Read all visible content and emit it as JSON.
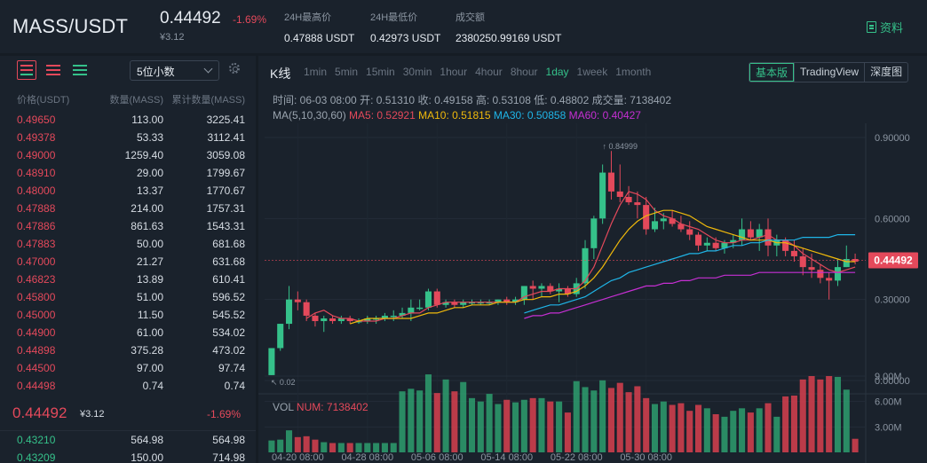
{
  "header": {
    "pair": "MASS/USDT",
    "last_price": "0.44492",
    "change_pct": "-1.69%",
    "cny_price": "¥3.12",
    "high_label": "24H最高价",
    "high_value": "0.47888 USDT",
    "low_label": "24H最低价",
    "low_value": "0.42973 USDT",
    "volume_label": "成交额",
    "volume_value": "2380250.99169 USDT",
    "info_label": "资料",
    "info_icon": "doc-icon"
  },
  "orderbook": {
    "depth_select": "5位小数",
    "columns": {
      "price": "价格(USDT)",
      "amount": "数量(MASS)",
      "total": "累计数量(MASS)"
    },
    "asks": [
      [
        "0.49650",
        "113.00",
        "3225.41"
      ],
      [
        "0.49378",
        "53.33",
        "3112.41"
      ],
      [
        "0.49000",
        "1259.40",
        "3059.08"
      ],
      [
        "0.48910",
        "29.00",
        "1799.67"
      ],
      [
        "0.48000",
        "13.37",
        "1770.67"
      ],
      [
        "0.47888",
        "214.00",
        "1757.31"
      ],
      [
        "0.47886",
        "861.63",
        "1543.31"
      ],
      [
        "0.47883",
        "50.00",
        "681.68"
      ],
      [
        "0.47000",
        "21.27",
        "631.68"
      ],
      [
        "0.46823",
        "13.89",
        "610.41"
      ],
      [
        "0.45800",
        "51.00",
        "596.52"
      ],
      [
        "0.45000",
        "11.50",
        "545.52"
      ],
      [
        "0.44900",
        "61.00",
        "534.02"
      ],
      [
        "0.44898",
        "375.28",
        "473.02"
      ],
      [
        "0.44500",
        "97.00",
        "97.74"
      ],
      [
        "0.44498",
        "0.74",
        "0.74"
      ]
    ],
    "mid": {
      "price": "0.44492",
      "cny": "¥3.12",
      "pct": "-1.69%"
    },
    "bids": [
      [
        "0.43210",
        "564.98",
        "564.98"
      ],
      [
        "0.43209",
        "150.00",
        "714.98"
      ]
    ]
  },
  "chart": {
    "title": "K线",
    "intervals": [
      "1min",
      "5min",
      "15min",
      "30min",
      "1hour",
      "4hour",
      "8hour",
      "1day",
      "1week",
      "1month"
    ],
    "active_interval": "1day",
    "views": [
      "基本版",
      "TradingView",
      "深度图"
    ],
    "active_view": "基本版",
    "info_line": [
      {
        "label": "时间:",
        "value": "06-03 08:00"
      },
      {
        "label": "开:",
        "value": "0.51310"
      },
      {
        "label": "收:",
        "value": "0.49158"
      },
      {
        "label": "高:",
        "value": "0.53108"
      },
      {
        "label": "低:",
        "value": "0.48802"
      },
      {
        "label": "成交量:",
        "value": "7138402"
      }
    ],
    "ma_line": {
      "label": "MA(5,10,30,60)",
      "items": [
        {
          "text": "MA5: 0.52921",
          "color": "#e4495b"
        },
        {
          "text": "MA10: 0.51815",
          "color": "#f0b90b"
        },
        {
          "text": "MA30: 0.50858",
          "color": "#1fb5e8"
        },
        {
          "text": "MA60: 0.40427",
          "color": "#c62fd3"
        }
      ]
    },
    "vol_label": "VOL",
    "vol_num": "NUM: 7138402",
    "current_price_tag": "0.44492",
    "max_label": "0.84999",
    "min_label": "0.02"
  },
  "chart_data": {
    "type": "candlestick",
    "x_tick_labels": [
      "04-20 08:00",
      "04-28 08:00",
      "05-06 08:00",
      "05-14 08:00",
      "05-22 08:00",
      "05-30 08:00"
    ],
    "price_ticks": [
      "0.90000",
      "0.60000",
      "0.30000",
      "0.00000"
    ],
    "price_range": [
      0,
      0.9
    ],
    "volume_ticks": [
      "9.00M",
      "6.00M",
      "3.00M"
    ],
    "volume_range": [
      0,
      9000000
    ],
    "candles": [
      [
        0.02,
        0.12,
        0.02,
        0.12,
        1.4
      ],
      [
        0.12,
        0.21,
        0.11,
        0.21,
        1.5
      ],
      [
        0.21,
        0.35,
        0.19,
        0.3,
        2.6
      ],
      [
        0.3,
        0.33,
        0.26,
        0.29,
        1.8
      ],
      [
        0.29,
        0.3,
        0.22,
        0.24,
        1.9
      ],
      [
        0.24,
        0.25,
        0.2,
        0.22,
        1.5
      ],
      [
        0.22,
        0.24,
        0.18,
        0.23,
        1.2
      ],
      [
        0.23,
        0.24,
        0.21,
        0.22,
        1.1
      ],
      [
        0.22,
        0.24,
        0.21,
        0.23,
        1.1
      ],
      [
        0.23,
        0.24,
        0.21,
        0.22,
        1.1
      ],
      [
        0.22,
        0.23,
        0.21,
        0.22,
        1.1
      ],
      [
        0.22,
        0.24,
        0.21,
        0.23,
        1.1
      ],
      [
        0.23,
        0.24,
        0.21,
        0.23,
        1.1
      ],
      [
        0.23,
        0.25,
        0.22,
        0.24,
        1.1
      ],
      [
        0.24,
        0.26,
        0.22,
        0.24,
        1.1
      ],
      [
        0.24,
        0.27,
        0.23,
        0.25,
        7.2
      ],
      [
        0.25,
        0.3,
        0.22,
        0.27,
        7.5
      ],
      [
        0.27,
        0.3,
        0.26,
        0.27,
        7.3
      ],
      [
        0.27,
        0.34,
        0.26,
        0.33,
        9.2
      ],
      [
        0.33,
        0.34,
        0.27,
        0.28,
        7.0
      ],
      [
        0.28,
        0.3,
        0.27,
        0.29,
        8.6
      ],
      [
        0.29,
        0.3,
        0.27,
        0.28,
        7.2
      ],
      [
        0.28,
        0.3,
        0.27,
        0.29,
        8.3
      ],
      [
        0.29,
        0.3,
        0.28,
        0.29,
        6.4
      ],
      [
        0.29,
        0.3,
        0.28,
        0.29,
        6.0
      ],
      [
        0.29,
        0.3,
        0.28,
        0.29,
        6.9
      ],
      [
        0.29,
        0.3,
        0.28,
        0.3,
        5.7
      ],
      [
        0.3,
        0.31,
        0.28,
        0.29,
        6.2
      ],
      [
        0.29,
        0.31,
        0.28,
        0.3,
        5.9
      ],
      [
        0.3,
        0.35,
        0.28,
        0.35,
        6.2
      ],
      [
        0.35,
        0.37,
        0.3,
        0.34,
        6.4
      ],
      [
        0.34,
        0.36,
        0.31,
        0.35,
        6.4
      ],
      [
        0.35,
        0.36,
        0.32,
        0.33,
        6.0
      ],
      [
        0.33,
        0.36,
        0.29,
        0.34,
        6.0
      ],
      [
        0.34,
        0.35,
        0.31,
        0.32,
        4.7
      ],
      [
        0.32,
        0.38,
        0.31,
        0.36,
        8.4
      ],
      [
        0.36,
        0.52,
        0.34,
        0.49,
        7.7
      ],
      [
        0.49,
        0.61,
        0.45,
        0.6,
        7.3
      ],
      [
        0.6,
        0.8,
        0.58,
        0.77,
        8.5
      ],
      [
        0.77,
        0.85,
        0.67,
        0.7,
        7.6
      ],
      [
        0.7,
        0.8,
        0.66,
        0.68,
        8.2
      ],
      [
        0.68,
        0.72,
        0.65,
        0.66,
        7.1
      ],
      [
        0.66,
        0.7,
        0.6,
        0.65,
        7.8
      ],
      [
        0.65,
        0.68,
        0.54,
        0.56,
        6.4
      ],
      [
        0.56,
        0.64,
        0.55,
        0.59,
        5.7
      ],
      [
        0.59,
        0.62,
        0.56,
        0.6,
        6.0
      ],
      [
        0.6,
        0.63,
        0.57,
        0.58,
        5.6
      ],
      [
        0.58,
        0.61,
        0.55,
        0.56,
        5.8
      ],
      [
        0.56,
        0.59,
        0.52,
        0.54,
        4.9
      ],
      [
        0.54,
        0.55,
        0.48,
        0.5,
        5.6
      ],
      [
        0.5,
        0.53,
        0.48,
        0.51,
        5.2
      ],
      [
        0.51,
        0.53,
        0.48,
        0.49,
        4.5
      ],
      [
        0.49,
        0.52,
        0.47,
        0.51,
        4.2
      ],
      [
        0.51,
        0.54,
        0.49,
        0.52,
        4.9
      ],
      [
        0.52,
        0.6,
        0.5,
        0.56,
        5.2
      ],
      [
        0.56,
        0.59,
        0.52,
        0.53,
        4.7
      ],
      [
        0.53,
        0.58,
        0.48,
        0.56,
        5.2
      ],
      [
        0.56,
        0.6,
        0.46,
        0.5,
        5.8
      ],
      [
        0.5,
        0.54,
        0.46,
        0.52,
        4.2
      ],
      [
        0.52,
        0.53,
        0.46,
        0.48,
        6.6
      ],
      [
        0.48,
        0.52,
        0.44,
        0.46,
        6.7
      ],
      [
        0.46,
        0.49,
        0.39,
        0.42,
        8.6
      ],
      [
        0.42,
        0.47,
        0.38,
        0.41,
        9.0
      ],
      [
        0.41,
        0.43,
        0.36,
        0.38,
        8.6
      ],
      [
        0.38,
        0.4,
        0.3,
        0.37,
        9.0
      ],
      [
        0.37,
        0.45,
        0.35,
        0.42,
        8.9
      ],
      [
        0.42,
        0.5,
        0.42,
        0.45,
        7.4
      ],
      [
        0.45,
        0.47,
        0.43,
        0.44,
        1.6
      ]
    ],
    "ma": [
      {
        "name": "MA5",
        "color": "#e4495b",
        "values": [
          null,
          null,
          null,
          null,
          0.23,
          0.25,
          0.26,
          0.24,
          0.23,
          0.23,
          0.22,
          0.22,
          0.22,
          0.23,
          0.23,
          0.24,
          0.25,
          0.25,
          0.27,
          0.28,
          0.29,
          0.29,
          0.29,
          0.29,
          0.29,
          0.29,
          0.29,
          0.29,
          0.29,
          0.31,
          0.32,
          0.33,
          0.33,
          0.34,
          0.34,
          0.34,
          0.37,
          0.42,
          0.5,
          0.58,
          0.65,
          0.7,
          0.69,
          0.67,
          0.63,
          0.61,
          0.6,
          0.58,
          0.57,
          0.56,
          0.54,
          0.52,
          0.51,
          0.51,
          0.52,
          0.52,
          0.53,
          0.54,
          0.52,
          0.52,
          0.5,
          0.47,
          0.45,
          0.43,
          0.41,
          0.4,
          0.41,
          0.42
        ]
      },
      {
        "name": "MA10",
        "color": "#f0b90b",
        "values": [
          null,
          null,
          null,
          null,
          null,
          null,
          null,
          null,
          null,
          0.21,
          0.22,
          0.23,
          0.23,
          0.23,
          0.23,
          0.23,
          0.23,
          0.24,
          0.25,
          0.25,
          0.26,
          0.27,
          0.27,
          0.28,
          0.28,
          0.28,
          0.29,
          0.29,
          0.29,
          0.3,
          0.3,
          0.31,
          0.31,
          0.32,
          0.32,
          0.33,
          0.35,
          0.38,
          0.42,
          0.47,
          0.52,
          0.56,
          0.59,
          0.61,
          0.62,
          0.63,
          0.63,
          0.62,
          0.61,
          0.59,
          0.57,
          0.56,
          0.55,
          0.54,
          0.53,
          0.52,
          0.52,
          0.52,
          0.51,
          0.51,
          0.5,
          0.49,
          0.48,
          0.47,
          0.46,
          0.45,
          0.44,
          0.44
        ]
      },
      {
        "name": "MA30",
        "color": "#1fb5e8",
        "values": [
          null,
          null,
          null,
          null,
          null,
          null,
          null,
          null,
          null,
          null,
          null,
          null,
          null,
          null,
          null,
          null,
          null,
          null,
          null,
          null,
          null,
          null,
          null,
          null,
          null,
          null,
          null,
          null,
          null,
          0.25,
          0.26,
          0.27,
          0.28,
          0.28,
          0.29,
          0.3,
          0.31,
          0.33,
          0.35,
          0.37,
          0.38,
          0.4,
          0.41,
          0.42,
          0.43,
          0.44,
          0.45,
          0.46,
          0.47,
          0.47,
          0.48,
          0.48,
          0.49,
          0.5,
          0.5,
          0.51,
          0.51,
          0.52,
          0.52,
          0.52,
          0.52,
          0.53,
          0.53,
          0.53,
          0.53,
          0.54,
          0.54,
          0.54
        ]
      },
      {
        "name": "MA60",
        "color": "#c62fd3",
        "values": [
          null,
          null,
          null,
          null,
          null,
          null,
          null,
          null,
          null,
          null,
          null,
          null,
          null,
          null,
          null,
          null,
          null,
          null,
          null,
          null,
          null,
          null,
          null,
          null,
          null,
          null,
          null,
          null,
          null,
          0.23,
          0.24,
          0.24,
          0.25,
          0.25,
          0.26,
          0.27,
          0.28,
          0.29,
          0.3,
          0.31,
          0.32,
          0.33,
          0.34,
          0.35,
          0.35,
          0.36,
          0.36,
          0.37,
          0.37,
          0.38,
          0.38,
          0.38,
          0.39,
          0.39,
          0.39,
          0.39,
          0.4,
          0.4,
          0.4,
          0.4,
          0.4,
          0.4,
          0.4,
          0.4,
          0.4,
          0.4,
          0.4,
          0.4
        ]
      }
    ]
  }
}
